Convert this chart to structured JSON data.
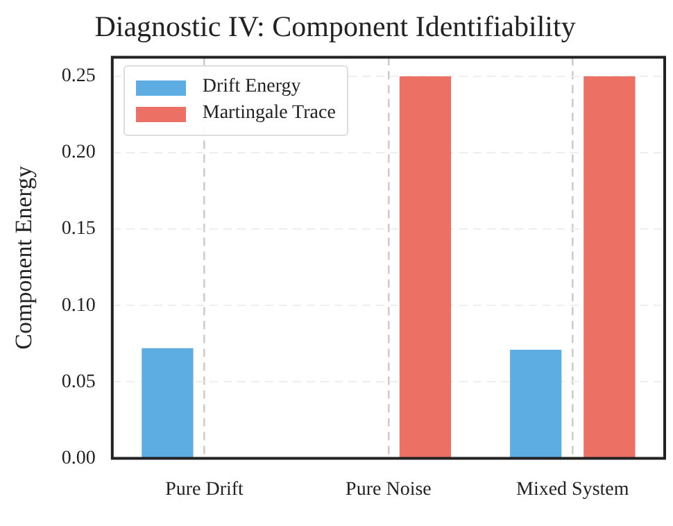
{
  "chart_data": {
    "type": "bar",
    "title": "Diagnostic IV: Component Identifiability",
    "ylabel": "Component Energy",
    "categories": [
      "Pure Drift",
      "Pure Noise",
      "Mixed System"
    ],
    "series": [
      {
        "name": "Drift Energy",
        "color": "#5dade2",
        "values": [
          0.072,
          0,
          0.071
        ]
      },
      {
        "name": "Martingale Trace",
        "color": "#ec7063",
        "values": [
          0,
          0.25,
          0.25
        ]
      }
    ],
    "ylim": [
      0,
      0.2625
    ],
    "yticks": [
      {
        "value": 0,
        "label": "0.00"
      },
      0.05,
      {
        "value": 0.1,
        "label": "0.10"
      },
      0.15,
      {
        "value": 0.2,
        "label": "0.20"
      },
      0.25
    ],
    "grid": true,
    "legend": "top left"
  }
}
